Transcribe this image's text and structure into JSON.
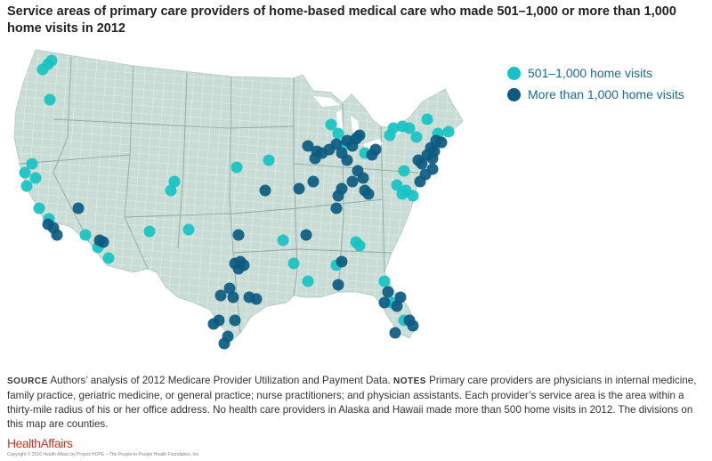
{
  "title": "Service areas of primary care providers of home-based medical care who made 501–1,000 or more than 1,000 home visits in 2012",
  "legend": {
    "items": [
      {
        "label": "501–1,000 home visits",
        "color": "#17c2c4"
      },
      {
        "label": "More than 1,000 home visits",
        "color": "#0c5a80"
      }
    ]
  },
  "colors": {
    "land": "#c9dcd6",
    "county_lines": "#ffffff"
  },
  "footnote": {
    "source_head": "SOURCE",
    "source_text": "Authors’ analysis of 2012 Medicare Provider Utilization and Payment Data.",
    "notes_head": "NOTES",
    "notes_text": "Primary care providers are physicians in internal medicine, family practice, geriatric medicine, or general practice; nurse practitioners; and physician assistants. Each provider’s service area is the area within a thirty-mile radius of his or her office address. No health care providers in Alaska and Hawaii made more than 500 home visits in 2012. The divisions on this map are counties."
  },
  "brand": "HealthAffairs",
  "copyright": "Copyright © 2016 Health Affairs by Project HOPE – The People-to-People Health Foundation, Inc."
}
